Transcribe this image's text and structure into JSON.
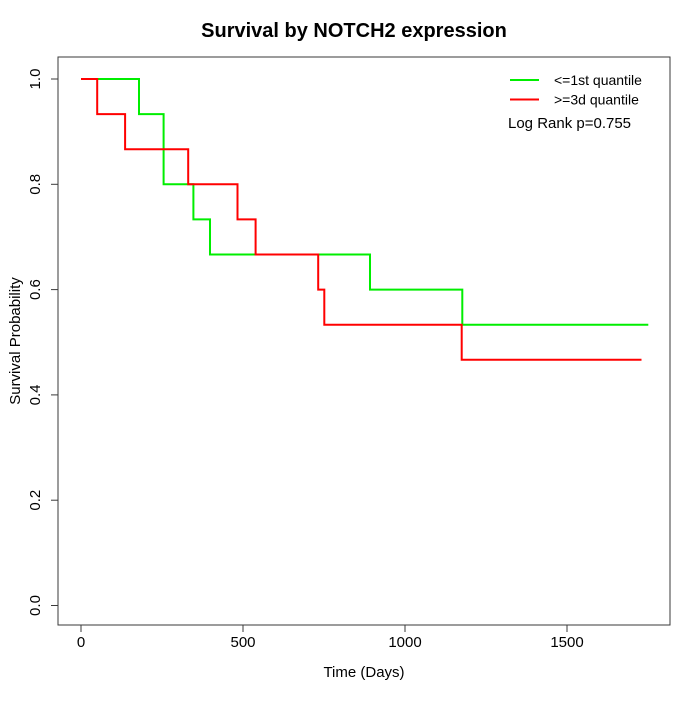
{
  "window": {
    "background_color": "#ffffff"
  },
  "chart_data": {
    "type": "line",
    "subtype": "kaplan-meier-step",
    "title": "Survival by NOTCH2 expression",
    "xlabel": "Time (Days)",
    "ylabel": "Survival Probability",
    "xlim": [
      0,
      1820
    ],
    "ylim": [
      0.0,
      1.0
    ],
    "grid": false,
    "legend_position": "top-right",
    "annotation": "Log Rank p=0.755",
    "x_ticks": [
      0,
      500,
      1000,
      1500
    ],
    "x_tick_labels": [
      "0",
      "500",
      "1000",
      "1500"
    ],
    "y_ticks": [
      1.0,
      0.8,
      0.6,
      0.4,
      0.2,
      0.0
    ],
    "y_tick_labels": [
      "1.0",
      "0.8",
      "0.6",
      "0.4",
      "0.2",
      "0.0"
    ],
    "series": [
      {
        "name": "<=1st quantile",
        "color": "#00ee00",
        "points": [
          [
            0,
            1.0
          ],
          [
            179,
            0.9333
          ],
          [
            255,
            0.8
          ],
          [
            347,
            0.7333
          ],
          [
            398,
            0.6667
          ],
          [
            892,
            0.6
          ],
          [
            1177,
            0.5333
          ],
          [
            1751,
            0.5333
          ]
        ]
      },
      {
        "name": ">=3d quantile",
        "color": "#ff0000",
        "points": [
          [
            0,
            1.0
          ],
          [
            50,
            0.9333
          ],
          [
            136,
            0.8667
          ],
          [
            331,
            0.8
          ],
          [
            483,
            0.7333
          ],
          [
            539,
            0.6667
          ],
          [
            732,
            0.6
          ],
          [
            751,
            0.5333
          ],
          [
            1175,
            0.4667
          ],
          [
            1730,
            0.4667
          ]
        ]
      }
    ]
  }
}
